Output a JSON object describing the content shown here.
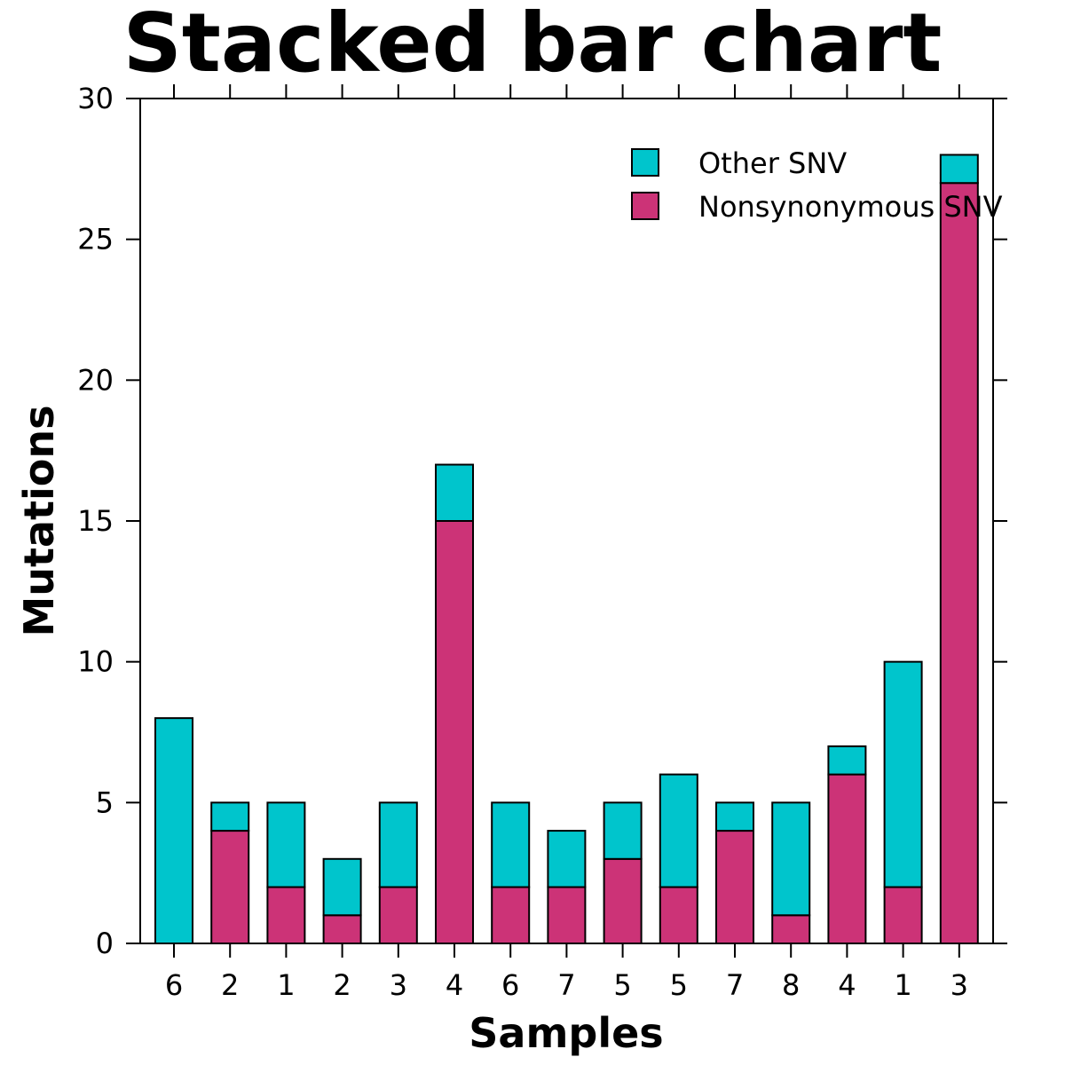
{
  "chart_data": {
    "type": "bar",
    "stacked": true,
    "title": "Stacked bar chart",
    "xlabel": "Samples",
    "ylabel": "Mutations",
    "ylim": [
      0,
      30
    ],
    "yticks": [
      0,
      5,
      10,
      15,
      20,
      25,
      30
    ],
    "grid": false,
    "legend_position": "top-right",
    "categories": [
      "6",
      "2",
      "1",
      "2",
      "3",
      "4",
      "6",
      "7",
      "5",
      "5",
      "7",
      "8",
      "4",
      "1",
      "3"
    ],
    "series": [
      {
        "name": "Nonsynonymous SNV",
        "color": "#cc3377",
        "values": [
          0,
          4,
          2,
          1,
          2,
          15,
          2,
          2,
          3,
          2,
          4,
          1,
          6,
          2,
          27
        ]
      },
      {
        "name": "Other SNV",
        "color": "#00c5cc",
        "values": [
          8,
          1,
          3,
          2,
          3,
          2,
          3,
          2,
          2,
          4,
          1,
          4,
          1,
          8,
          1
        ]
      }
    ],
    "legend_order": [
      "Other SNV",
      "Nonsynonymous SNV"
    ]
  }
}
